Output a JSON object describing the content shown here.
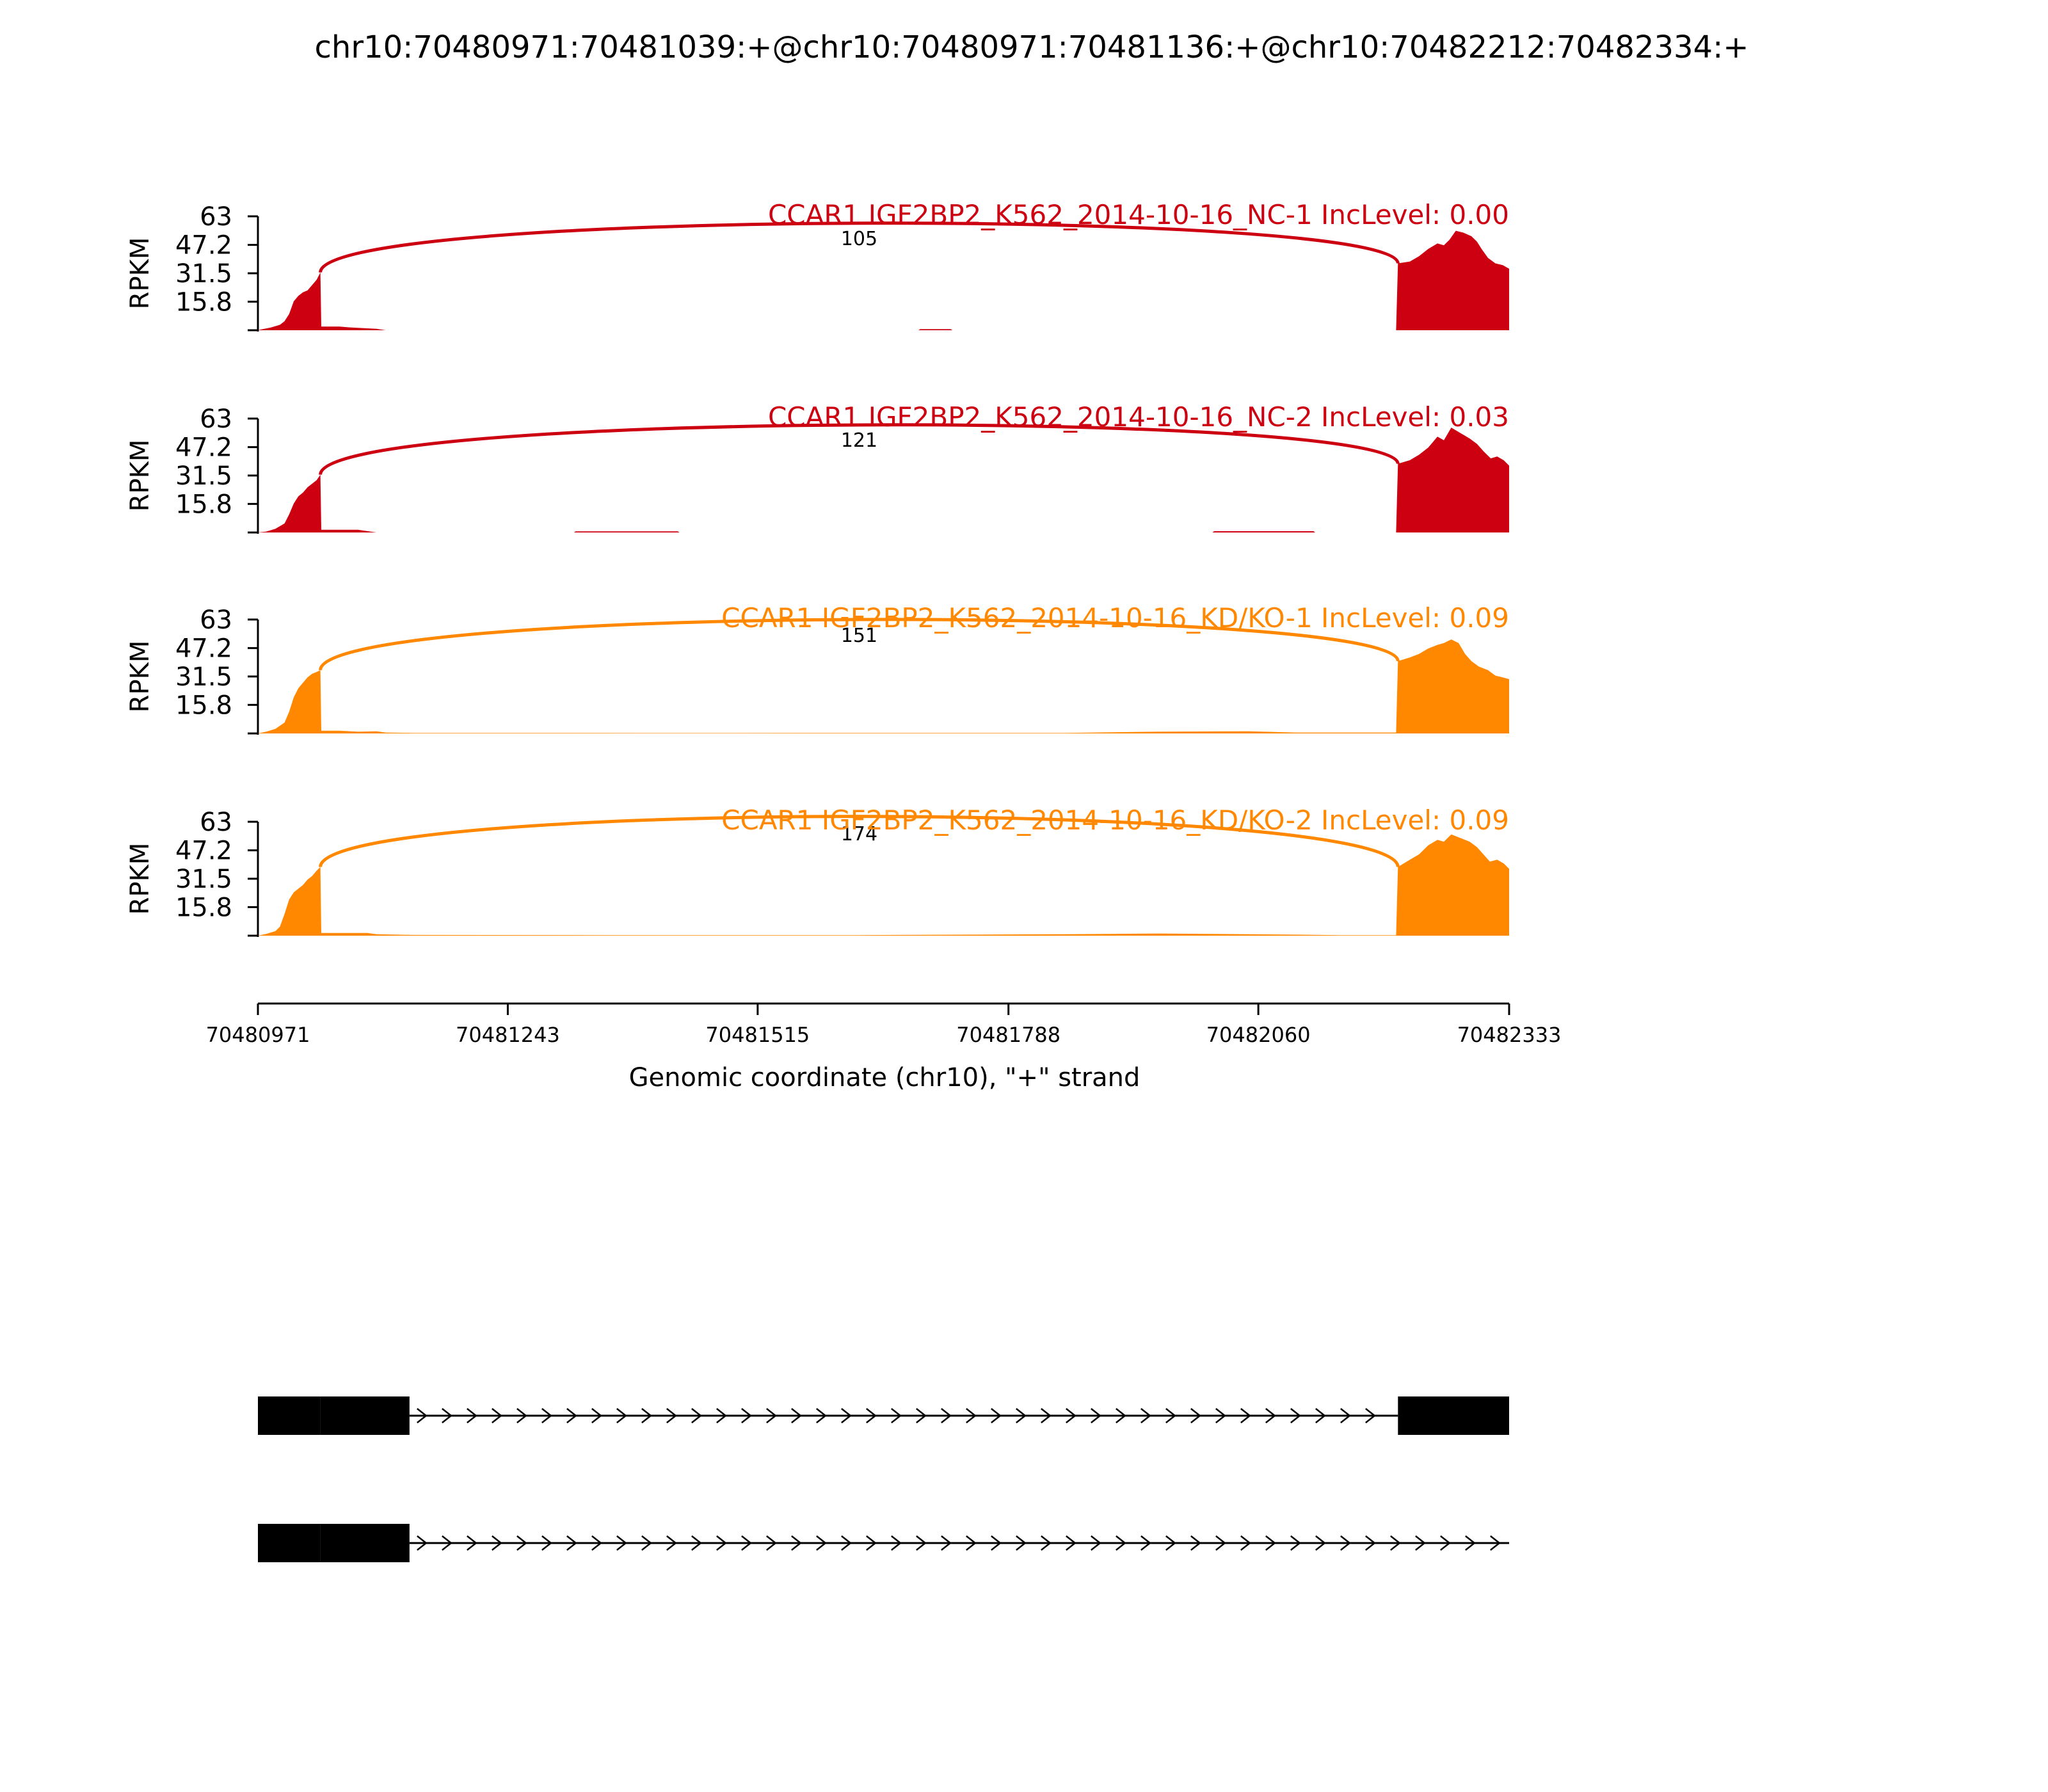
{
  "title": "chr10:70480971:70481039:+@chr10:70480971:70481136:+@chr10:70482212:70482334:+",
  "colors": {
    "nc": "#cc0011",
    "kd": "#ff8800",
    "axis": "#000000",
    "gene": "#000000"
  },
  "chart_data": {
    "type": "area",
    "xlabel": "Genomic coordinate (chr10), \"+\" strand",
    "xlim": [
      70480971,
      70482333
    ],
    "xticks": [
      "70480971",
      "70481243",
      "70481515",
      "70481788",
      "70482060",
      "70482333"
    ],
    "xtick_values": [
      70480971,
      70481243,
      70481515,
      70481788,
      70482060,
      70482333
    ],
    "ylabel": "RPKM",
    "ylim": [
      0,
      63
    ],
    "yticks": [
      "63",
      "47.2",
      "31.5",
      "15.8"
    ],
    "ytick_values": [
      63,
      47.2,
      31.5,
      15.8
    ],
    "junction": {
      "start": 70481039,
      "end": 70482212
    },
    "tracks": [
      {
        "label": "CCAR1 IGF2BP2_K562_2014-10-16_NC-1 IncLevel: 0.00",
        "group": "nc",
        "junction_count": "105",
        "coverage": [
          [
            70480971,
            0
          ],
          [
            70480975,
            0.5
          ],
          [
            70480985,
            1.5
          ],
          [
            70480995,
            3
          ],
          [
            70481000,
            5
          ],
          [
            70481005,
            9
          ],
          [
            70481010,
            16
          ],
          [
            70481015,
            19
          ],
          [
            70481020,
            21
          ],
          [
            70481025,
            22
          ],
          [
            70481030,
            25
          ],
          [
            70481035,
            28
          ],
          [
            70481039,
            32
          ],
          [
            70481040,
            2
          ],
          [
            70481060,
            2
          ],
          [
            70481070,
            1.6
          ],
          [
            70481085,
            1.2
          ],
          [
            70481100,
            0.8
          ],
          [
            70481110,
            0
          ],
          [
            70481690,
            0
          ],
          [
            70481692,
            0.6
          ],
          [
            70481725,
            0.6
          ],
          [
            70481727,
            0
          ],
          [
            70482210,
            0
          ],
          [
            70482212,
            37
          ],
          [
            70482225,
            38
          ],
          [
            70482235,
            41
          ],
          [
            70482245,
            45
          ],
          [
            70482255,
            48
          ],
          [
            70482262,
            47
          ],
          [
            70482268,
            50
          ],
          [
            70482275,
            55
          ],
          [
            70482283,
            54
          ],
          [
            70482292,
            52
          ],
          [
            70482298,
            49
          ],
          [
            70482303,
            45
          ],
          [
            70482310,
            40
          ],
          [
            70482318,
            37
          ],
          [
            70482326,
            36
          ],
          [
            70482333,
            34
          ]
        ]
      },
      {
        "label": "CCAR1 IGF2BP2_K562_2014-10-16_NC-2 IncLevel: 0.03",
        "group": "nc",
        "junction_count": "121",
        "coverage": [
          [
            70480971,
            0
          ],
          [
            70480980,
            0.5
          ],
          [
            70480990,
            2
          ],
          [
            70481000,
            5
          ],
          [
            70481005,
            10
          ],
          [
            70481010,
            16
          ],
          [
            70481015,
            20
          ],
          [
            70481020,
            22
          ],
          [
            70481025,
            25
          ],
          [
            70481030,
            27
          ],
          [
            70481035,
            29
          ],
          [
            70481039,
            32
          ],
          [
            70481040,
            1.5
          ],
          [
            70481080,
            1.5
          ],
          [
            70481100,
            0
          ],
          [
            70481315,
            0
          ],
          [
            70481317,
            0.6
          ],
          [
            70481428,
            0.6
          ],
          [
            70481430,
            0
          ],
          [
            70482010,
            0
          ],
          [
            70482012,
            0.7
          ],
          [
            70482120,
            0.7
          ],
          [
            70482122,
            0
          ],
          [
            70482210,
            0
          ],
          [
            70482212,
            38
          ],
          [
            70482225,
            40
          ],
          [
            70482235,
            43
          ],
          [
            70482245,
            47
          ],
          [
            70482255,
            53
          ],
          [
            70482262,
            51
          ],
          [
            70482270,
            58
          ],
          [
            70482280,
            55
          ],
          [
            70482290,
            52
          ],
          [
            70482298,
            49
          ],
          [
            70482305,
            45
          ],
          [
            70482313,
            41
          ],
          [
            70482320,
            42
          ],
          [
            70482327,
            40
          ],
          [
            70482333,
            37
          ]
        ]
      },
      {
        "label": "CCAR1 IGF2BP2_K562_2014-10-16_KD/KO-1 IncLevel: 0.09",
        "group": "kd",
        "junction_count": "151",
        "coverage": [
          [
            70480971,
            0
          ],
          [
            70480980,
            1
          ],
          [
            70480990,
            2.5
          ],
          [
            70481000,
            6
          ],
          [
            70481005,
            12
          ],
          [
            70481010,
            20
          ],
          [
            70481015,
            25
          ],
          [
            70481020,
            28
          ],
          [
            70481025,
            31
          ],
          [
            70481030,
            33
          ],
          [
            70481035,
            34
          ],
          [
            70481039,
            35
          ],
          [
            70481040,
            1.5
          ],
          [
            70481060,
            1.5
          ],
          [
            70481080,
            1
          ],
          [
            70481100,
            1.2
          ],
          [
            70481110,
            0.5
          ],
          [
            70481140,
            0.3
          ],
          [
            70481240,
            0.3
          ],
          [
            70481400,
            0.2
          ],
          [
            70481620,
            0.3
          ],
          [
            70481850,
            0.3
          ],
          [
            70481950,
            1
          ],
          [
            70482050,
            1.2
          ],
          [
            70482100,
            0.5
          ],
          [
            70482210,
            0.5
          ],
          [
            70482212,
            40
          ],
          [
            70482225,
            42
          ],
          [
            70482235,
            44
          ],
          [
            70482245,
            47
          ],
          [
            70482255,
            49
          ],
          [
            70482262,
            50
          ],
          [
            70482270,
            52
          ],
          [
            70482278,
            50
          ],
          [
            70482285,
            44
          ],
          [
            70482292,
            40
          ],
          [
            70482300,
            37
          ],
          [
            70482310,
            35
          ],
          [
            70482318,
            32
          ],
          [
            70482326,
            31
          ],
          [
            70482333,
            30
          ]
        ]
      },
      {
        "label": "CCAR1 IGF2BP2_K562_2014-10-16_KD/KO-2 IncLevel: 0.09",
        "group": "kd",
        "junction_count": "174",
        "coverage": [
          [
            70480971,
            0
          ],
          [
            70480980,
            1
          ],
          [
            70480990,
            2.5
          ],
          [
            70480995,
            5
          ],
          [
            70481000,
            12
          ],
          [
            70481005,
            20
          ],
          [
            70481010,
            24
          ],
          [
            70481015,
            26
          ],
          [
            70481020,
            28
          ],
          [
            70481025,
            31
          ],
          [
            70481030,
            33
          ],
          [
            70481035,
            36
          ],
          [
            70481039,
            38
          ],
          [
            70481040,
            1.5
          ],
          [
            70481090,
            1.5
          ],
          [
            70481100,
            0.8
          ],
          [
            70481140,
            0.4
          ],
          [
            70481400,
            0.3
          ],
          [
            70481620,
            0.3
          ],
          [
            70481850,
            0.8
          ],
          [
            70481950,
            1.2
          ],
          [
            70482050,
            0.8
          ],
          [
            70482150,
            0.3
          ],
          [
            70482210,
            0.3
          ],
          [
            70482212,
            38
          ],
          [
            70482225,
            42
          ],
          [
            70482235,
            45
          ],
          [
            70482245,
            50
          ],
          [
            70482255,
            53
          ],
          [
            70482262,
            52
          ],
          [
            70482270,
            56
          ],
          [
            70482280,
            54
          ],
          [
            70482290,
            52
          ],
          [
            70482298,
            49
          ],
          [
            70482305,
            45
          ],
          [
            70482312,
            41
          ],
          [
            70482320,
            42
          ],
          [
            70482327,
            40
          ],
          [
            70482333,
            37
          ]
        ]
      }
    ],
    "gene_models": [
      {
        "exons": [
          [
            70480971,
            70481039
          ],
          [
            70481039,
            70481136
          ],
          [
            70482212,
            70482333
          ]
        ],
        "line_end": 70482212
      },
      {
        "exons": [
          [
            70480971,
            70481039
          ],
          [
            70481039,
            70481136
          ]
        ],
        "line_end": 70482333
      }
    ]
  }
}
